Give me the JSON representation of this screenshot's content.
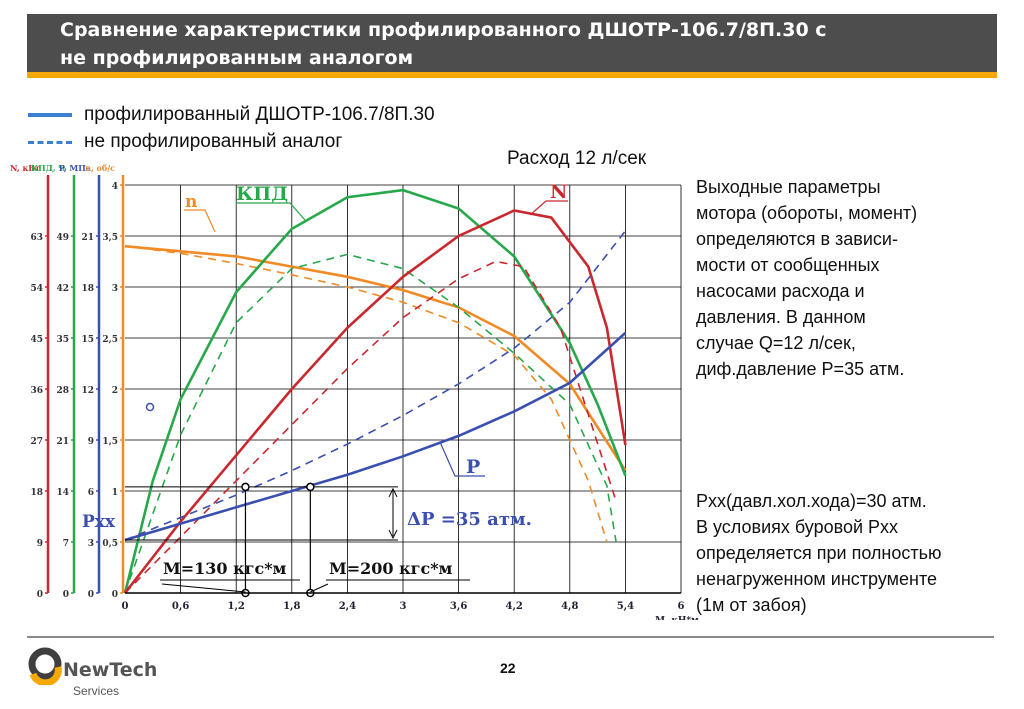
{
  "header": {
    "title_line1": "Сравнение характеристики профилированного ДШОТР-106.7/8П.30 с",
    "title_line2": "не профилированным аналогом"
  },
  "legend": {
    "solid_label": "профилированный ДШОТР-106.7/8П.30",
    "dashed_label": "не профилированный аналог"
  },
  "flow_label": "Расход 12 л/сек",
  "side_text_1": [
    "Выходные параметры",
    "мотора (обороты, момент)",
    "определяются в зависи-",
    "мости от сообщенных",
    "насосами расхода и",
    "давления. В данном",
    "случае Q=12 л/сек,",
    "диф.давление P=35 атм."
  ],
  "side_text_2": [
    "Рхх(давл.хол.хода)=30 атм.",
    "В условиях буровой Рхх",
    "определяется при полностью",
    "ненагруженном инструменте",
    "(1м от забоя)"
  ],
  "footer": {
    "page": "22",
    "logo_name": "NewTech",
    "logo_sub": "Services"
  },
  "colors": {
    "n": "#f08a24",
    "kpd": "#27a84a",
    "power": "#c8282e",
    "pressure": "#3a4fb0",
    "title_bg": "#4d4d4d",
    "accent": "#f5a800"
  },
  "chart_data": {
    "type": "line",
    "xlabel": "М, кН*м",
    "x_ticks": [
      "0",
      "0,6",
      "1,2",
      "1,8",
      "2,4",
      "3",
      "3,6",
      "4,2",
      "4,8",
      "5,4",
      "6"
    ],
    "xlim": [
      0,
      6
    ],
    "axes": [
      {
        "label": "N, кВт",
        "ticks": [
          "0",
          "9",
          "18",
          "27",
          "36",
          "45",
          "54",
          "63"
        ],
        "color": "#c8282e"
      },
      {
        "label": "КПД, %",
        "ticks": [
          "0",
          "7",
          "14",
          "21",
          "28",
          "35",
          "42",
          "49"
        ],
        "color": "#27a84a"
      },
      {
        "label": "P, МПа",
        "ticks": [
          "0",
          "3",
          "6",
          "9",
          "12",
          "15",
          "18",
          "21"
        ],
        "color": "#3a4fb0"
      },
      {
        "label": "n, об/с",
        "ticks": [
          "0",
          "0,5",
          "1",
          "1,5",
          "2",
          "2,5",
          "3",
          "3,5",
          "4"
        ],
        "color": "#f08a24"
      }
    ],
    "ref_ylim": [
      0,
      4
    ],
    "curve_labels": {
      "n": "n",
      "kpd": "КПД",
      "power": "N",
      "pressure": "P"
    },
    "series": [
      {
        "name": "n",
        "style": "solid",
        "color": "#f08a24",
        "points": [
          [
            0,
            3.4
          ],
          [
            0.6,
            3.35
          ],
          [
            1.2,
            3.3
          ],
          [
            1.8,
            3.2
          ],
          [
            2.4,
            3.1
          ],
          [
            3,
            2.97
          ],
          [
            3.6,
            2.8
          ],
          [
            4.2,
            2.52
          ],
          [
            4.8,
            2.05
          ],
          [
            5.4,
            1.2
          ]
        ]
      },
      {
        "name": "n",
        "style": "dashed",
        "color": "#f08a24",
        "points": [
          [
            0,
            3.4
          ],
          [
            0.6,
            3.33
          ],
          [
            1.2,
            3.23
          ],
          [
            1.8,
            3.12
          ],
          [
            2.4,
            3.0
          ],
          [
            3,
            2.85
          ],
          [
            3.6,
            2.65
          ],
          [
            4.2,
            2.33
          ],
          [
            4.6,
            1.9
          ],
          [
            5.0,
            1.1
          ],
          [
            5.2,
            0.5
          ]
        ]
      },
      {
        "name": "КПД",
        "style": "solid",
        "color": "#27a84a",
        "points": [
          [
            0,
            0
          ],
          [
            0.3,
            1.1
          ],
          [
            0.6,
            1.9
          ],
          [
            1.2,
            2.95
          ],
          [
            1.8,
            3.57
          ],
          [
            2.4,
            3.88
          ],
          [
            3,
            3.95
          ],
          [
            3.6,
            3.77
          ],
          [
            4.2,
            3.3
          ],
          [
            4.8,
            2.45
          ],
          [
            5.1,
            1.85
          ],
          [
            5.4,
            1.15
          ]
        ]
      },
      {
        "name": "КПД",
        "style": "dashed",
        "color": "#27a84a",
        "points": [
          [
            0,
            0
          ],
          [
            0.6,
            1.55
          ],
          [
            1.2,
            2.65
          ],
          [
            1.8,
            3.18
          ],
          [
            2.4,
            3.32
          ],
          [
            3,
            3.18
          ],
          [
            3.6,
            2.8
          ],
          [
            4.2,
            2.35
          ],
          [
            4.8,
            1.85
          ],
          [
            5.2,
            1.05
          ],
          [
            5.3,
            0.5
          ]
        ]
      },
      {
        "name": "N",
        "style": "solid",
        "color": "#c8282e",
        "points": [
          [
            0,
            0
          ],
          [
            0.6,
            0.7
          ],
          [
            1.2,
            1.35
          ],
          [
            1.8,
            2.0
          ],
          [
            2.4,
            2.6
          ],
          [
            3,
            3.1
          ],
          [
            3.6,
            3.5
          ],
          [
            4.2,
            3.75
          ],
          [
            4.6,
            3.68
          ],
          [
            5.0,
            3.2
          ],
          [
            5.2,
            2.6
          ],
          [
            5.4,
            1.45
          ]
        ]
      },
      {
        "name": "N",
        "style": "dashed",
        "color": "#c8282e",
        "points": [
          [
            0,
            0
          ],
          [
            0.6,
            0.55
          ],
          [
            1.2,
            1.1
          ],
          [
            1.8,
            1.65
          ],
          [
            2.4,
            2.2
          ],
          [
            3,
            2.7
          ],
          [
            3.6,
            3.08
          ],
          [
            4.0,
            3.25
          ],
          [
            4.3,
            3.2
          ],
          [
            4.7,
            2.6
          ],
          [
            5.0,
            1.75
          ],
          [
            5.3,
            0.9
          ]
        ]
      },
      {
        "name": "P",
        "style": "solid",
        "color": "#3a4fb0",
        "points": [
          [
            0,
            0.52
          ],
          [
            0.6,
            0.68
          ],
          [
            1.2,
            0.84
          ],
          [
            1.8,
            1.0
          ],
          [
            2.4,
            1.16
          ],
          [
            3,
            1.34
          ],
          [
            3.6,
            1.54
          ],
          [
            4.2,
            1.78
          ],
          [
            4.8,
            2.06
          ],
          [
            5.4,
            2.55
          ]
        ]
      },
      {
        "name": "P",
        "style": "dashed",
        "color": "#3a4fb0",
        "points": [
          [
            0,
            0.52
          ],
          [
            0.6,
            0.74
          ],
          [
            1.2,
            0.96
          ],
          [
            1.8,
            1.2
          ],
          [
            2.4,
            1.46
          ],
          [
            3,
            1.74
          ],
          [
            3.6,
            2.05
          ],
          [
            4.2,
            2.4
          ],
          [
            4.8,
            2.85
          ],
          [
            5.4,
            3.55
          ]
        ]
      }
    ],
    "annotations": {
      "pxx_label": "Pxx",
      "dp_label": "ΔP =35 атм.",
      "m1_label": "M=130 кгс*м",
      "m2_label": "M=200 кгс*м",
      "m1_x": 1.3,
      "m2_x": 2.0,
      "p_low": 0.52,
      "p_high": 1.04
    }
  }
}
